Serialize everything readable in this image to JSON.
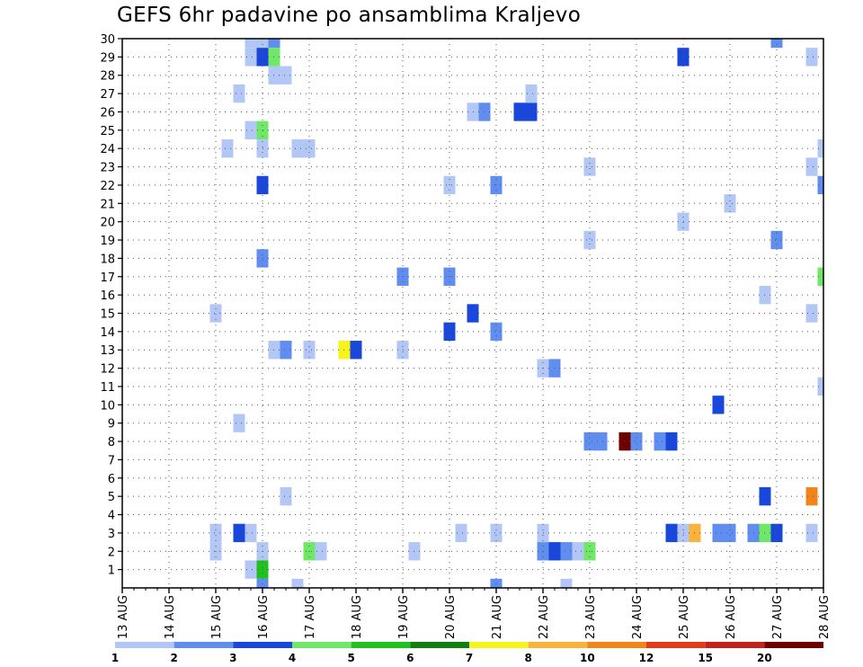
{
  "title": "GEFS 6hr padavine po ansamblima Kraljevo",
  "chart_data": {
    "type": "heatmap",
    "title": "GEFS 6hr padavine po ansamblima Kraljevo",
    "xlabel": "",
    "ylabel": "",
    "x_unit": "days from 13 AUG 00Z (6-hour steps)",
    "x_range": [
      0,
      15
    ],
    "y_range": [
      0,
      30
    ],
    "x_tick_labels": [
      "13 AUG",
      "14 AUG",
      "15 AUG",
      "16 AUG",
      "17 AUG",
      "18 AUG",
      "19 AUG",
      "20 AUG",
      "21 AUG",
      "22 AUG",
      "23 AUG",
      "24 AUG",
      "25 AUG",
      "26 AUG",
      "27 AUG",
      "28 AUG"
    ],
    "y_tick_labels": [
      "1",
      "2",
      "3",
      "4",
      "5",
      "6",
      "7",
      "8",
      "9",
      "10",
      "11",
      "12",
      "13",
      "14",
      "15",
      "16",
      "17",
      "18",
      "19",
      "20",
      "21",
      "22",
      "23",
      "24",
      "25",
      "26",
      "27",
      "28",
      "29",
      "30"
    ],
    "grid": true,
    "colorbar": {
      "placement": "bottom",
      "labels": [
        "1",
        "2",
        "3",
        "4",
        "5",
        "6",
        "7",
        "8",
        "10",
        "12",
        "15",
        "20"
      ],
      "colors": [
        "#b3c7f7",
        "#5f8df0",
        "#1a47db",
        "#6ee866",
        "#1fc21f",
        "#0f7f0f",
        "#f5f51a",
        "#fbb23c",
        "#f2851a",
        "#e03c1a",
        "#c2231a",
        "#6f0000"
      ]
    },
    "cells": [
      {
        "x": 2.75,
        "y": 30,
        "v": 1.5
      },
      {
        "x": 3.0,
        "y": 30,
        "v": 1.5
      },
      {
        "x": 3.25,
        "y": 30,
        "v": 2.5
      },
      {
        "x": 2.75,
        "y": 29,
        "v": 1.5
      },
      {
        "x": 3.0,
        "y": 29,
        "v": 3.5
      },
      {
        "x": 3.25,
        "y": 29,
        "v": 4.5
      },
      {
        "x": 3.25,
        "y": 28,
        "v": 1.5
      },
      {
        "x": 3.5,
        "y": 28,
        "v": 1.5
      },
      {
        "x": 2.5,
        "y": 27,
        "v": 1.5
      },
      {
        "x": 2.75,
        "y": 25,
        "v": 1.5
      },
      {
        "x": 3.0,
        "y": 25,
        "v": 4.5
      },
      {
        "x": 2.25,
        "y": 24,
        "v": 1.5
      },
      {
        "x": 3.0,
        "y": 24,
        "v": 1.5
      },
      {
        "x": 3.75,
        "y": 24,
        "v": 1.5
      },
      {
        "x": 4.0,
        "y": 24,
        "v": 1.5
      },
      {
        "x": 3.0,
        "y": 22,
        "v": 3.5
      },
      {
        "x": 3.0,
        "y": 18,
        "v": 2.5
      },
      {
        "x": 2.0,
        "y": 15,
        "v": 1.5
      },
      {
        "x": 3.25,
        "y": 13,
        "v": 1.5
      },
      {
        "x": 3.5,
        "y": 13,
        "v": 2.5
      },
      {
        "x": 4.0,
        "y": 13,
        "v": 1.5
      },
      {
        "x": 4.75,
        "y": 13,
        "v": 7.5
      },
      {
        "x": 5.0,
        "y": 13,
        "v": 3.5
      },
      {
        "x": 6.0,
        "y": 13,
        "v": 1.5
      },
      {
        "x": 6.0,
        "y": 17,
        "v": 2.5
      },
      {
        "x": 7.0,
        "y": 17,
        "v": 2.5
      },
      {
        "x": 7.0,
        "y": 14,
        "v": 3.5
      },
      {
        "x": 7.5,
        "y": 15,
        "v": 3.5
      },
      {
        "x": 8.0,
        "y": 14,
        "v": 2.5
      },
      {
        "x": 7.0,
        "y": 22,
        "v": 1.5
      },
      {
        "x": 8.0,
        "y": 22,
        "v": 2.5
      },
      {
        "x": 7.5,
        "y": 26,
        "v": 1.5
      },
      {
        "x": 7.75,
        "y": 26,
        "v": 2.5
      },
      {
        "x": 8.5,
        "y": 26,
        "v": 3.5
      },
      {
        "x": 8.75,
        "y": 26,
        "v": 3.5
      },
      {
        "x": 8.75,
        "y": 27,
        "v": 1.5
      },
      {
        "x": 2.5,
        "y": 9,
        "v": 1.5
      },
      {
        "x": 3.5,
        "y": 5,
        "v": 1.5
      },
      {
        "x": 2.0,
        "y": 3,
        "v": 1.5
      },
      {
        "x": 2.5,
        "y": 3,
        "v": 3.5
      },
      {
        "x": 2.75,
        "y": 3,
        "v": 1.5
      },
      {
        "x": 2.0,
        "y": 2,
        "v": 1.5
      },
      {
        "x": 3.0,
        "y": 2,
        "v": 1.5
      },
      {
        "x": 4.0,
        "y": 2,
        "v": 4.5
      },
      {
        "x": 4.25,
        "y": 2,
        "v": 1.5
      },
      {
        "x": 2.75,
        "y": 1,
        "v": 1.5
      },
      {
        "x": 3.0,
        "y": 1,
        "v": 5.5
      },
      {
        "x": 3.0,
        "y": 0,
        "v": 2.5
      },
      {
        "x": 3.75,
        "y": 0,
        "v": 1.5
      },
      {
        "x": 6.25,
        "y": 2,
        "v": 1.5
      },
      {
        "x": 7.25,
        "y": 3,
        "v": 1.5
      },
      {
        "x": 8.0,
        "y": 3,
        "v": 1.5
      },
      {
        "x": 8.0,
        "y": 0,
        "v": 2.5
      },
      {
        "x": 9.0,
        "y": 3,
        "v": 1.5
      },
      {
        "x": 9.0,
        "y": 2,
        "v": 2.5
      },
      {
        "x": 9.25,
        "y": 2,
        "v": 3.5
      },
      {
        "x": 9.5,
        "y": 2,
        "v": 2.5
      },
      {
        "x": 9.75,
        "y": 2,
        "v": 1.5
      },
      {
        "x": 10.0,
        "y": 2,
        "v": 4.5
      },
      {
        "x": 9.5,
        "y": 0,
        "v": 1.5
      },
      {
        "x": 9.0,
        "y": 12,
        "v": 1.5
      },
      {
        "x": 9.25,
        "y": 12,
        "v": 2.5
      },
      {
        "x": 10.0,
        "y": 8,
        "v": 2.5
      },
      {
        "x": 10.25,
        "y": 8,
        "v": 2.5
      },
      {
        "x": 10.75,
        "y": 8,
        "v": 25
      },
      {
        "x": 11.0,
        "y": 8,
        "v": 2.5
      },
      {
        "x": 11.5,
        "y": 8,
        "v": 2.5
      },
      {
        "x": 11.75,
        "y": 8,
        "v": 3.5
      },
      {
        "x": 10.0,
        "y": 23,
        "v": 1.5
      },
      {
        "x": 10.0,
        "y": 19,
        "v": 1.5
      },
      {
        "x": 11.75,
        "y": 3,
        "v": 3.5
      },
      {
        "x": 12.0,
        "y": 3,
        "v": 1.5
      },
      {
        "x": 12.25,
        "y": 3,
        "v": 9
      },
      {
        "x": 12.0,
        "y": 29,
        "v": 3.5
      },
      {
        "x": 12.0,
        "y": 20,
        "v": 1.5
      },
      {
        "x": 12.75,
        "y": 3,
        "v": 2.5
      },
      {
        "x": 13.0,
        "y": 3,
        "v": 2.5
      },
      {
        "x": 12.75,
        "y": 10,
        "v": 3.5
      },
      {
        "x": 13.0,
        "y": 21,
        "v": 1.5
      },
      {
        "x": 13.5,
        "y": 3,
        "v": 2.5
      },
      {
        "x": 13.75,
        "y": 3,
        "v": 4.5
      },
      {
        "x": 14.0,
        "y": 3,
        "v": 3.5
      },
      {
        "x": 13.75,
        "y": 5,
        "v": 3.5
      },
      {
        "x": 13.75,
        "y": 16,
        "v": 1.5
      },
      {
        "x": 14.0,
        "y": 19,
        "v": 2.5
      },
      {
        "x": 14.0,
        "y": 30,
        "v": 2.5
      },
      {
        "x": 14.75,
        "y": 3,
        "v": 1.5
      },
      {
        "x": 14.75,
        "y": 5,
        "v": 11
      },
      {
        "x": 14.75,
        "y": 15,
        "v": 1.5
      },
      {
        "x": 14.75,
        "y": 23,
        "v": 1.5
      },
      {
        "x": 14.75,
        "y": 29,
        "v": 1.5
      },
      {
        "x": 15.0,
        "y": 24,
        "v": 1.5
      },
      {
        "x": 15.0,
        "y": 22,
        "v": 2.5
      },
      {
        "x": 15.0,
        "y": 17,
        "v": 4.5
      },
      {
        "x": 15.0,
        "y": 11,
        "v": 1.5
      }
    ]
  }
}
